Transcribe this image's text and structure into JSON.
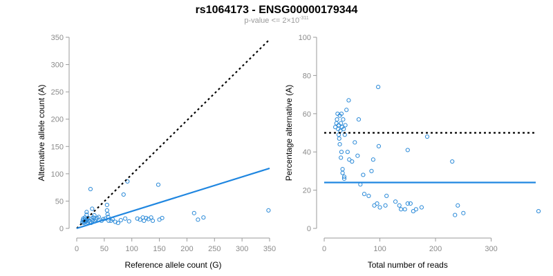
{
  "figure": {
    "title": "rs1064173 - ENSG00000179344",
    "subtitle_prefix": "p-value <= 2×10",
    "subtitle_exponent": "-311"
  },
  "colors": {
    "points": "#2b8ad8",
    "fit_line": "#1f86e0",
    "reference_line": "#000000",
    "axis": "#9a9a9a",
    "tick_text": "#8a8a8a",
    "label_text": "#000000"
  },
  "chart_data": [
    {
      "type": "scatter",
      "xlabel": "Reference allele count (G)",
      "ylabel": "Alternative allele count (A)",
      "xlim": [
        0,
        350
      ],
      "ylim": [
        0,
        350
      ],
      "xticks": [
        0,
        50,
        100,
        150,
        200,
        250,
        300,
        350
      ],
      "yticks": [
        0,
        50,
        100,
        150,
        200,
        250,
        300,
        350
      ],
      "grid": false,
      "points": [
        [
          10,
          11
        ],
        [
          11,
          15
        ],
        [
          12,
          12
        ],
        [
          12,
          18
        ],
        [
          13,
          10
        ],
        [
          14,
          14
        ],
        [
          15,
          20
        ],
        [
          15,
          12
        ],
        [
          16,
          17
        ],
        [
          17,
          13
        ],
        [
          18,
          25
        ],
        [
          18,
          30
        ],
        [
          19,
          16
        ],
        [
          20,
          11
        ],
        [
          21,
          19
        ],
        [
          22,
          14
        ],
        [
          24,
          12
        ],
        [
          25,
          72
        ],
        [
          26,
          10
        ],
        [
          27,
          18
        ],
        [
          28,
          36
        ],
        [
          29,
          15
        ],
        [
          30,
          20
        ],
        [
          32,
          24
        ],
        [
          33,
          13
        ],
        [
          35,
          16
        ],
        [
          37,
          19
        ],
        [
          40,
          21
        ],
        [
          45,
          14
        ],
        [
          48,
          17
        ],
        [
          52,
          18
        ],
        [
          55,
          43
        ],
        [
          55,
          33
        ],
        [
          56,
          26
        ],
        [
          57,
          21
        ],
        [
          58,
          14
        ],
        [
          62,
          14
        ],
        [
          65,
          17
        ],
        [
          70,
          12
        ],
        [
          75,
          10
        ],
        [
          80,
          15
        ],
        [
          85,
          62
        ],
        [
          88,
          18
        ],
        [
          92,
          86
        ],
        [
          95,
          13
        ],
        [
          110,
          18
        ],
        [
          115,
          16
        ],
        [
          120,
          20
        ],
        [
          122,
          14
        ],
        [
          126,
          19
        ],
        [
          130,
          17
        ],
        [
          135,
          20
        ],
        [
          138,
          14
        ],
        [
          148,
          80
        ],
        [
          150,
          16
        ],
        [
          155,
          19
        ],
        [
          213,
          28
        ],
        [
          220,
          16
        ],
        [
          230,
          20
        ],
        [
          348,
          33
        ]
      ],
      "lines": [
        {
          "name": "",
          "style": "dotted",
          "x": [
            0,
            350
          ],
          "y": [
            0,
            346
          ]
        },
        {
          "name": "",
          "style": "solid",
          "x": [
            0,
            350
          ],
          "y": [
            0,
            110
          ]
        }
      ]
    },
    {
      "type": "scatter",
      "xlabel": "Total number of reads",
      "ylabel": "Percentage alternative (A)",
      "xlim": [
        0,
        380
      ],
      "ylim": [
        0,
        100
      ],
      "xticks": [
        0,
        100,
        200,
        300
      ],
      "yticks": [
        0,
        20,
        40,
        60,
        80,
        100
      ],
      "grid": false,
      "points": [
        [
          20,
          53
        ],
        [
          22,
          55
        ],
        [
          23,
          57
        ],
        [
          24,
          60
        ],
        [
          25,
          52
        ],
        [
          26,
          54
        ],
        [
          26,
          49
        ],
        [
          27,
          47
        ],
        [
          28,
          59
        ],
        [
          28,
          44
        ],
        [
          29,
          51
        ],
        [
          30,
          55
        ],
        [
          30,
          37
        ],
        [
          31,
          60
        ],
        [
          31,
          40
        ],
        [
          32,
          53
        ],
        [
          33,
          31
        ],
        [
          33,
          29
        ],
        [
          34,
          57
        ],
        [
          35,
          52
        ],
        [
          36,
          27
        ],
        [
          36,
          26
        ],
        [
          37,
          49
        ],
        [
          38,
          54
        ],
        [
          40,
          62
        ],
        [
          42,
          40
        ],
        [
          44,
          67
        ],
        [
          45,
          36
        ],
        [
          50,
          35
        ],
        [
          55,
          45
        ],
        [
          60,
          38
        ],
        [
          62,
          57
        ],
        [
          65,
          23
        ],
        [
          70,
          28
        ],
        [
          72,
          18
        ],
        [
          80,
          17
        ],
        [
          85,
          30
        ],
        [
          88,
          36
        ],
        [
          90,
          12
        ],
        [
          95,
          13
        ],
        [
          97,
          74
        ],
        [
          98,
          43
        ],
        [
          100,
          11
        ],
        [
          110,
          12
        ],
        [
          112,
          17
        ],
        [
          128,
          14
        ],
        [
          135,
          12
        ],
        [
          138,
          10
        ],
        [
          145,
          10
        ],
        [
          150,
          41
        ],
        [
          150,
          13
        ],
        [
          155,
          13
        ],
        [
          160,
          9
        ],
        [
          165,
          10
        ],
        [
          175,
          11
        ],
        [
          185,
          48
        ],
        [
          230,
          35
        ],
        [
          235,
          7
        ],
        [
          240,
          12
        ],
        [
          250,
          8
        ],
        [
          385,
          9
        ]
      ],
      "lines": [
        {
          "name": "",
          "style": "dotted",
          "x": [
            0,
            380
          ],
          "y": [
            50,
            50
          ]
        },
        {
          "name": "",
          "style": "solid",
          "x": [
            0,
            380
          ],
          "y": [
            24,
            24
          ]
        }
      ]
    }
  ]
}
